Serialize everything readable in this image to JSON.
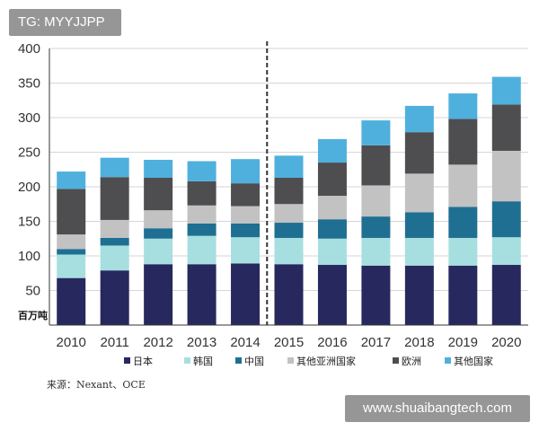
{
  "watermark": {
    "tag": "TG: MYYJJPP",
    "site": "www.shuaibangtech.com"
  },
  "source": "来源：Nexant、OCE",
  "chart_data": {
    "type": "bar",
    "stacked": true,
    "title": "",
    "ylabel": "百万吨",
    "xlabel": "",
    "ylim": [
      0,
      400
    ],
    "yticks": [
      50,
      100,
      150,
      200,
      250,
      300,
      350,
      400
    ],
    "categories": [
      "2010",
      "2011",
      "2012",
      "2013",
      "2014",
      "2015",
      "2016",
      "2017",
      "2018",
      "2019",
      "2020"
    ],
    "divider_after": "2014",
    "legend_position": "bottom",
    "series": [
      {
        "name": "日本",
        "color": "#27285e",
        "values": [
          68,
          79,
          88,
          88,
          89,
          88,
          87,
          86,
          86,
          86,
          87
        ]
      },
      {
        "name": "韩国",
        "color": "#a7dfe0",
        "values": [
          34,
          36,
          37,
          41,
          38,
          38,
          38,
          40,
          40,
          40,
          40
        ]
      },
      {
        "name": "中国",
        "color": "#1f6f92",
        "values": [
          8,
          11,
          15,
          18,
          20,
          22,
          28,
          31,
          37,
          45,
          52
        ]
      },
      {
        "name": "其他亚洲国家",
        "color": "#c2c2c2",
        "values": [
          21,
          26,
          26,
          26,
          25,
          27,
          34,
          45,
          56,
          61,
          73
        ]
      },
      {
        "name": "欧洲",
        "color": "#4e4e50",
        "values": [
          66,
          62,
          47,
          35,
          33,
          38,
          48,
          58,
          60,
          66,
          67
        ]
      },
      {
        "name": "其他国家",
        "color": "#4fb0dd",
        "values": [
          25,
          28,
          26,
          29,
          35,
          32,
          34,
          36,
          38,
          37,
          40
        ]
      }
    ]
  }
}
